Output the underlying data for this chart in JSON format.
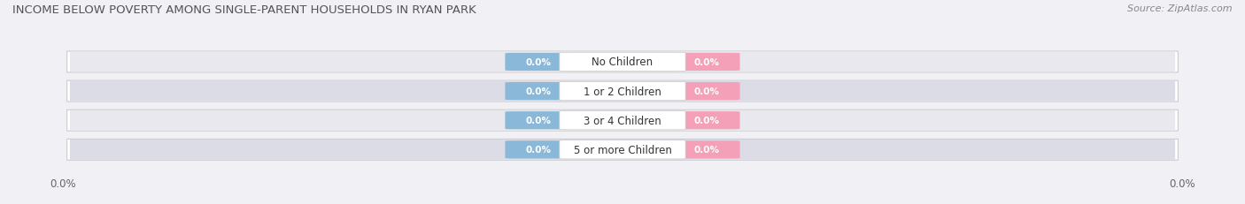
{
  "title": "INCOME BELOW POVERTY AMONG SINGLE-PARENT HOUSEHOLDS IN RYAN PARK",
  "source": "Source: ZipAtlas.com",
  "categories": [
    "No Children",
    "1 or 2 Children",
    "3 or 4 Children",
    "5 or more Children"
  ],
  "single_father_values": [
    0.0,
    0.0,
    0.0,
    0.0
  ],
  "single_mother_values": [
    0.0,
    0.0,
    0.0,
    0.0
  ],
  "father_color": "#8ab8d8",
  "mother_color": "#f4a0b8",
  "row_pill_color": "#e8e8ee",
  "row_pill_alt_color": "#dcdce6",
  "title_fontsize": 9.5,
  "source_fontsize": 8,
  "axis_label_fontsize": 8.5,
  "legend_fontsize": 9,
  "value_fontsize": 7.5,
  "category_fontsize": 8.5,
  "background_color": "#f0f0f5"
}
